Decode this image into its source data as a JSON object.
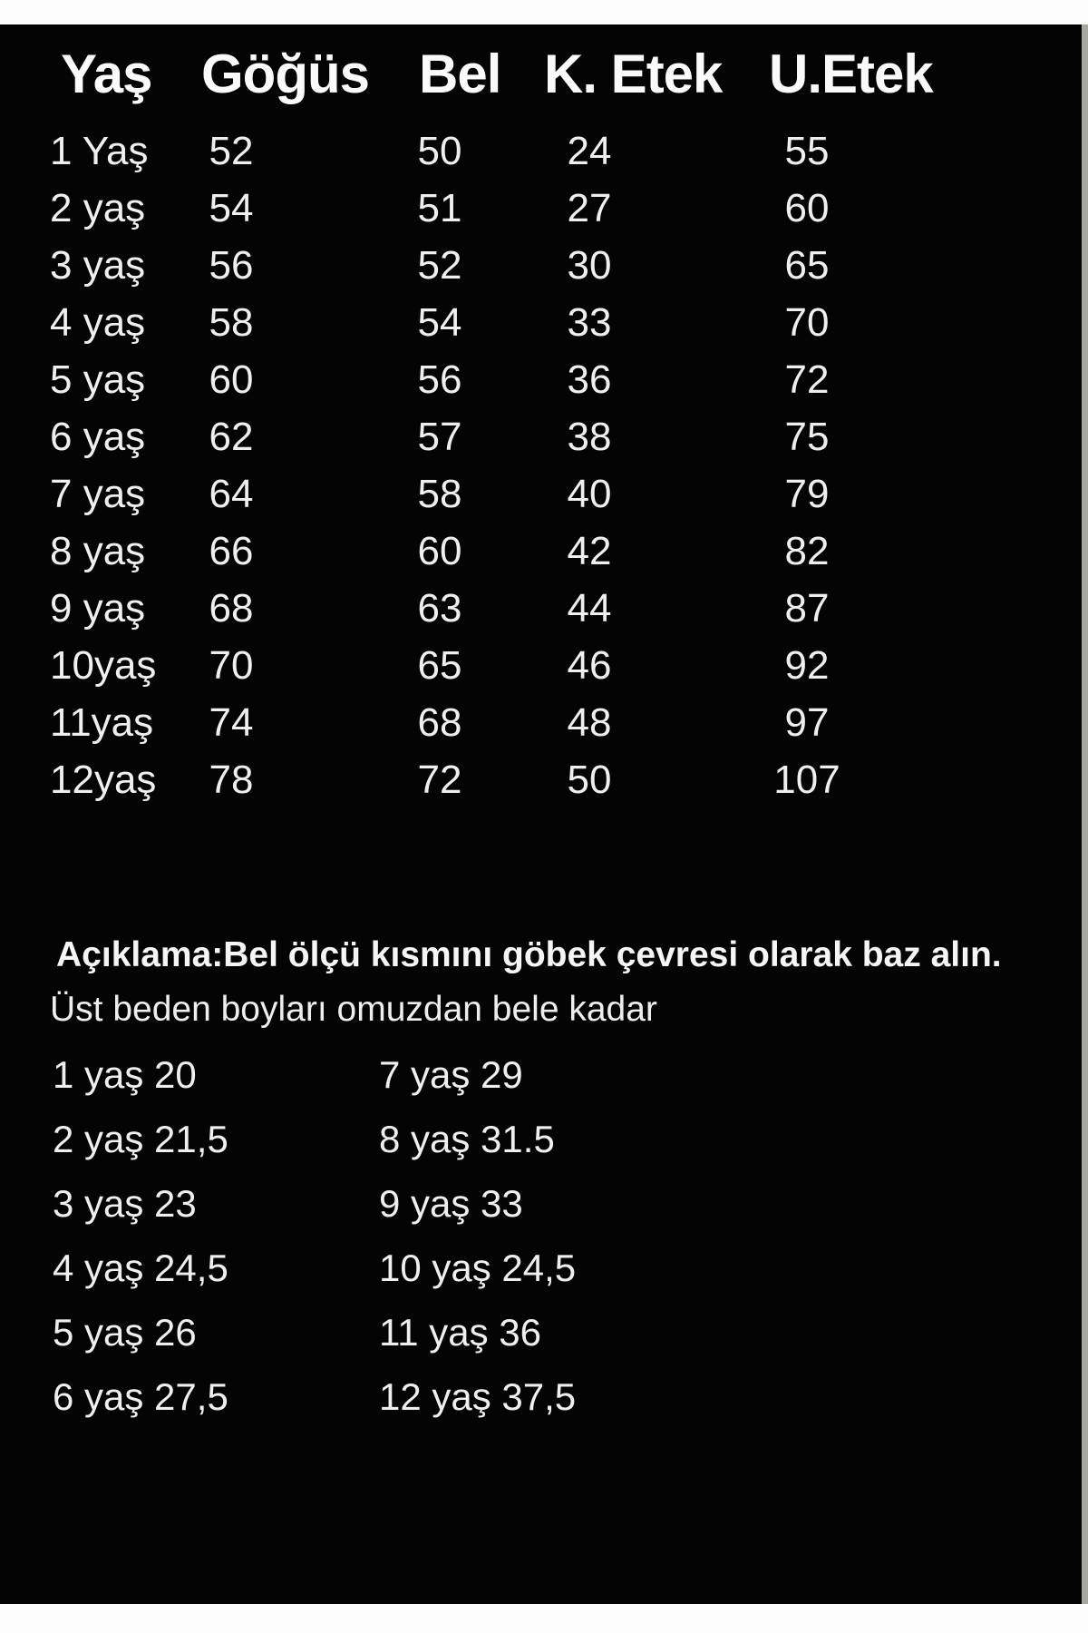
{
  "page": {
    "background": "#040404",
    "text_color": "#f0f0f0",
    "top_strip_color": "#fcfcfc",
    "bottom_strip_color": "#fcfcfc",
    "right_strip_color": "#a6a6a0"
  },
  "table": {
    "headers": [
      "Yaş",
      "Göğüs",
      "Bel",
      "K. Etek",
      "U.Etek"
    ],
    "rows": [
      [
        "1 Yaş",
        "52",
        "50",
        "24",
        "55"
      ],
      [
        "2 yaş",
        "54",
        "51",
        "27",
        "60"
      ],
      [
        "3 yaş",
        "56",
        "52",
        "30",
        "65"
      ],
      [
        "4 yaş",
        "58",
        "54",
        "33",
        "70"
      ],
      [
        "5 yaş",
        "60",
        "56",
        "36",
        "72"
      ],
      [
        "6 yaş",
        "62",
        "57",
        "38",
        "75"
      ],
      [
        "7 yaş",
        "64",
        "58",
        "40",
        "79"
      ],
      [
        "8 yaş",
        "66",
        "60",
        "42",
        "82"
      ],
      [
        "9 yaş",
        "68",
        "63",
        "44",
        "87"
      ],
      [
        "10yaş",
        "70",
        "65",
        "46",
        "92"
      ],
      [
        "11yaş",
        "74",
        "68",
        "48",
        "97"
      ],
      [
        "12yaş",
        "78",
        "72",
        "50",
        "107"
      ]
    ]
  },
  "notes": {
    "line1": "Açıklama:Bel ölçü kısmını göbek çevresi olarak baz alın.",
    "line2": "Üst beden boyları omuzdan bele kadar"
  },
  "upper_body_lengths": {
    "rows": [
      {
        "left": "1 yaş 20",
        "right": "7 yaş 29"
      },
      {
        "left": "2 yaş 21,5",
        "right": "8 yaş 31.5"
      },
      {
        "left": "3 yaş 23",
        "right": "9 yaş 33"
      },
      {
        "left": "4 yaş 24,5",
        "right": "10 yaş 24,5"
      },
      {
        "left": "5 yaş 26",
        "right": "11 yaş 36"
      },
      {
        "left": "6 yaş 27,5",
        "right": "12 yaş 37,5"
      }
    ]
  }
}
